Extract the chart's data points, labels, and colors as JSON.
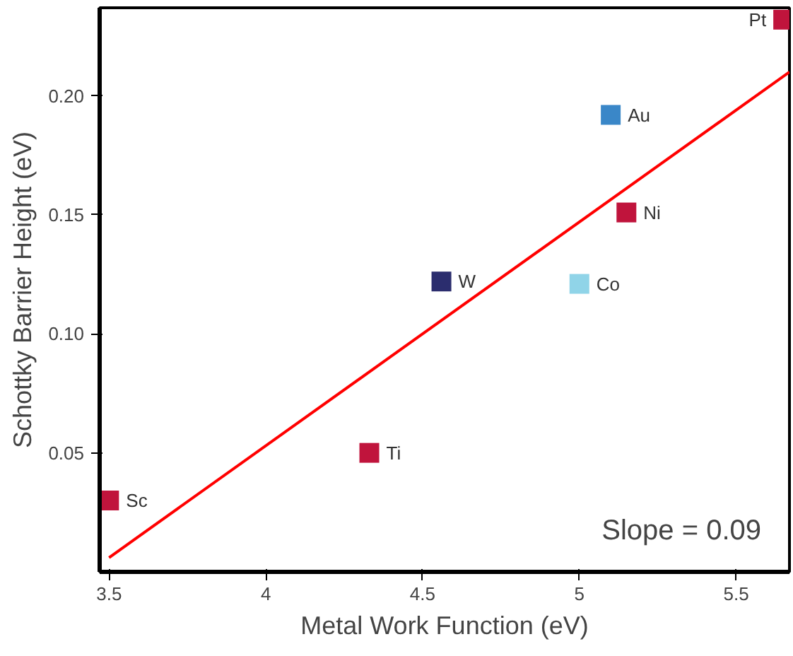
{
  "chart_data": {
    "type": "scatter",
    "xlabel": "Metal Work Function (eV)",
    "ylabel": "Schottky Barrier Height (eV)",
    "xlim": [
      3.47,
      5.67
    ],
    "ylim": [
      0,
      0.237
    ],
    "xticks": [
      3.5,
      4,
      4.5,
      5,
      5.5
    ],
    "yticks": [
      0.05,
      {
        "value": 0.1,
        "label": "0.10"
      },
      0.15,
      {
        "value": 0.2,
        "label": "0.20"
      }
    ],
    "grid": false,
    "marker": "square",
    "series": [
      {
        "x": [
          3.5,
          4.33,
          4.56,
          5.0,
          5.15,
          5.1,
          5.65
        ],
        "values": [
          0.03,
          0.05,
          0.122,
          0.121,
          0.151,
          0.192,
          0.232
        ],
        "colors": [
          "#c0143c",
          "#c0143c",
          "#2b2d6e",
          "#90d4e8",
          "#c0143c",
          "#3a87c8",
          "#c0143c"
        ]
      },
      {
        "type": "line",
        "x": [
          3.5,
          5.67
        ],
        "values": [
          0.006,
          0.21
        ],
        "color": "#ff0000",
        "line_style": "solid",
        "marker": "none"
      }
    ],
    "annotations": [
      {
        "text": "Sc",
        "x": 3.5,
        "y": 0.03
      },
      {
        "text": "Ti",
        "x": 4.33,
        "y": 0.05
      },
      {
        "text": "W",
        "x": 4.56,
        "y": 0.122
      },
      {
        "text": "Co",
        "x": 5.0,
        "y": 0.121
      },
      {
        "text": "Ni",
        "x": 5.15,
        "y": 0.151
      },
      {
        "text": "Au",
        "x": 5.1,
        "y": 0.192
      },
      {
        "text": "Pt",
        "x": 5.65,
        "y": 0.232
      },
      "Slope = 0.09"
    ]
  }
}
